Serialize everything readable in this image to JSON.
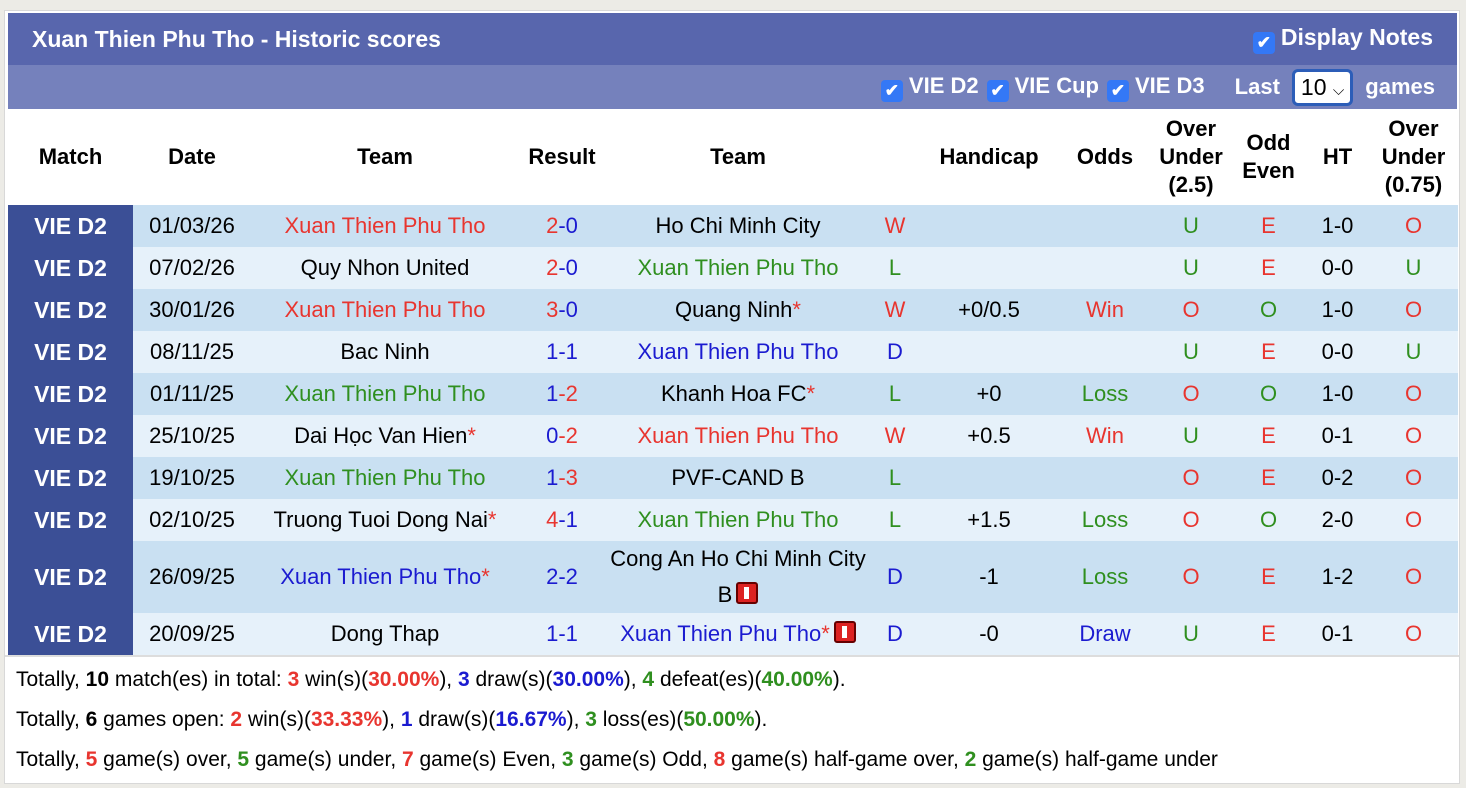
{
  "title": "Xuan Thien Phu Tho - Historic scores",
  "display_notes": "Display Notes",
  "filters": [
    {
      "label": "VIE D2",
      "checked": true
    },
    {
      "label": "VIE Cup",
      "checked": true
    },
    {
      "label": "VIE D3",
      "checked": true
    }
  ],
  "last_label": "Last",
  "last_value": "10",
  "games_label": "games",
  "colors": {
    "red": "#e8352f",
    "green": "#2f8f1f",
    "blue": "#1b1bd0",
    "black": "#000000",
    "header": "#5866ad",
    "match_cell": "#3b4f96"
  },
  "headers": [
    "Match",
    "Date",
    "Team",
    "Result",
    "Team",
    "",
    "Handicap",
    "Odds",
    "Over Under (2.5)",
    "Odd Even",
    "HT",
    "Over Under (0.75)"
  ],
  "rows": [
    {
      "match": "VIE D2",
      "date": "01/03/26",
      "home": {
        "name": "Xuan Thien Phu Tho",
        "c": "red"
      },
      "hs": [
        "2",
        "red"
      ],
      "as": [
        "0",
        "blue"
      ],
      "away": {
        "name": "Ho Chi Minh City",
        "c": "black"
      },
      "wl": [
        "W",
        "red"
      ],
      "hc": "",
      "odds": [
        "",
        ""
      ],
      "ou": [
        "U",
        "green"
      ],
      "oe": [
        "E",
        "red"
      ],
      "ht": "1-0",
      "ou2": [
        "O",
        "red"
      ]
    },
    {
      "match": "VIE D2",
      "date": "07/02/26",
      "home": {
        "name": "Quy Nhon United",
        "c": "black"
      },
      "hs": [
        "2",
        "red"
      ],
      "as": [
        "0",
        "blue"
      ],
      "away": {
        "name": "Xuan Thien Phu Tho",
        "c": "green"
      },
      "wl": [
        "L",
        "green"
      ],
      "hc": "",
      "odds": [
        "",
        ""
      ],
      "ou": [
        "U",
        "green"
      ],
      "oe": [
        "E",
        "red"
      ],
      "ht": "0-0",
      "ou2": [
        "U",
        "green"
      ]
    },
    {
      "match": "VIE D2",
      "date": "30/01/26",
      "home": {
        "name": "Xuan Thien Phu Tho",
        "c": "red"
      },
      "hs": [
        "3",
        "red"
      ],
      "as": [
        "0",
        "blue"
      ],
      "away": {
        "name": "Quang Ninh",
        "c": "black",
        "star": true
      },
      "wl": [
        "W",
        "red"
      ],
      "hc": "+0/0.5",
      "odds": [
        "Win",
        "red"
      ],
      "ou": [
        "O",
        "red"
      ],
      "oe": [
        "O",
        "green"
      ],
      "ht": "1-0",
      "ou2": [
        "O",
        "red"
      ]
    },
    {
      "match": "VIE D2",
      "date": "08/11/25",
      "home": {
        "name": "Bac Ninh",
        "c": "black"
      },
      "hs": [
        "1",
        "blue"
      ],
      "as": [
        "1",
        "blue"
      ],
      "away": {
        "name": "Xuan Thien Phu Tho",
        "c": "blue"
      },
      "wl": [
        "D",
        "blue"
      ],
      "hc": "",
      "odds": [
        "",
        ""
      ],
      "ou": [
        "U",
        "green"
      ],
      "oe": [
        "E",
        "red"
      ],
      "ht": "0-0",
      "ou2": [
        "U",
        "green"
      ]
    },
    {
      "match": "VIE D2",
      "date": "01/11/25",
      "home": {
        "name": "Xuan Thien Phu Tho",
        "c": "green"
      },
      "hs": [
        "1",
        "blue"
      ],
      "as": [
        "2",
        "red"
      ],
      "away": {
        "name": "Khanh Hoa FC",
        "c": "black",
        "star": true
      },
      "wl": [
        "L",
        "green"
      ],
      "hc": "+0",
      "odds": [
        "Loss",
        "green"
      ],
      "ou": [
        "O",
        "red"
      ],
      "oe": [
        "O",
        "green"
      ],
      "ht": "1-0",
      "ou2": [
        "O",
        "red"
      ]
    },
    {
      "match": "VIE D2",
      "date": "25/10/25",
      "home": {
        "name": "Dai Học Van Hien",
        "c": "black",
        "star": true
      },
      "hs": [
        "0",
        "blue"
      ],
      "as": [
        "2",
        "red"
      ],
      "away": {
        "name": "Xuan Thien Phu Tho",
        "c": "red"
      },
      "wl": [
        "W",
        "red"
      ],
      "hc": "+0.5",
      "odds": [
        "Win",
        "red"
      ],
      "ou": [
        "U",
        "green"
      ],
      "oe": [
        "E",
        "red"
      ],
      "ht": "0-1",
      "ou2": [
        "O",
        "red"
      ]
    },
    {
      "match": "VIE D2",
      "date": "19/10/25",
      "home": {
        "name": "Xuan Thien Phu Tho",
        "c": "green"
      },
      "hs": [
        "1",
        "blue"
      ],
      "as": [
        "3",
        "red"
      ],
      "away": {
        "name": "PVF-CAND B",
        "c": "black"
      },
      "wl": [
        "L",
        "green"
      ],
      "hc": "",
      "odds": [
        "",
        ""
      ],
      "ou": [
        "O",
        "red"
      ],
      "oe": [
        "E",
        "red"
      ],
      "ht": "0-2",
      "ou2": [
        "O",
        "red"
      ]
    },
    {
      "match": "VIE D2",
      "date": "02/10/25",
      "home": {
        "name": "Truong Tuoi Dong Nai",
        "c": "black",
        "star": true
      },
      "hs": [
        "4",
        "red"
      ],
      "as": [
        "1",
        "blue"
      ],
      "away": {
        "name": "Xuan Thien Phu Tho",
        "c": "green"
      },
      "wl": [
        "L",
        "green"
      ],
      "hc": "+1.5",
      "odds": [
        "Loss",
        "green"
      ],
      "ou": [
        "O",
        "red"
      ],
      "oe": [
        "O",
        "green"
      ],
      "ht": "2-0",
      "ou2": [
        "O",
        "red"
      ]
    },
    {
      "match": "VIE D2",
      "date": "26/09/25",
      "home": {
        "name": "Xuan Thien Phu Tho",
        "c": "blue",
        "star": true
      },
      "hs": [
        "2",
        "blue"
      ],
      "as": [
        "2",
        "blue"
      ],
      "away": {
        "name": "Cong An Ho Chi Minh City B",
        "c": "black",
        "card": true
      },
      "wl": [
        "D",
        "blue"
      ],
      "hc": "-1",
      "odds": [
        "Loss",
        "green"
      ],
      "ou": [
        "O",
        "red"
      ],
      "oe": [
        "E",
        "red"
      ],
      "ht": "1-2",
      "ou2": [
        "O",
        "red"
      ]
    },
    {
      "match": "VIE D2",
      "date": "20/09/25",
      "home": {
        "name": "Dong Thap",
        "c": "black"
      },
      "hs": [
        "1",
        "blue"
      ],
      "as": [
        "1",
        "blue"
      ],
      "away": {
        "name": "Xuan Thien Phu Tho",
        "c": "blue",
        "star": true,
        "card": true
      },
      "wl": [
        "D",
        "blue"
      ],
      "hc": "-0",
      "odds": [
        "Draw",
        "blue"
      ],
      "ou": [
        "U",
        "green"
      ],
      "oe": [
        "E",
        "red"
      ],
      "ht": "0-1",
      "ou2": [
        "O",
        "red"
      ]
    }
  ],
  "summary": [
    [
      [
        "Totally, ",
        "black"
      ],
      [
        "10",
        "bold"
      ],
      [
        " match(es) in total: ",
        "black"
      ],
      [
        "3",
        "red"
      ],
      [
        " win(s)(",
        "black"
      ],
      [
        "30.00%",
        "red"
      ],
      [
        "), ",
        "black"
      ],
      [
        "3",
        "blue"
      ],
      [
        " draw(s)(",
        "black"
      ],
      [
        "30.00%",
        "blue"
      ],
      [
        "), ",
        "black"
      ],
      [
        "4",
        "green"
      ],
      [
        " defeat(es)(",
        "black"
      ],
      [
        "40.00%",
        "green"
      ],
      [
        ").",
        "black"
      ]
    ],
    [
      [
        "Totally, ",
        "black"
      ],
      [
        "6",
        "bold"
      ],
      [
        " games open: ",
        "black"
      ],
      [
        "2",
        "red"
      ],
      [
        " win(s)(",
        "black"
      ],
      [
        "33.33%",
        "red"
      ],
      [
        "), ",
        "black"
      ],
      [
        "1",
        "blue"
      ],
      [
        " draw(s)(",
        "black"
      ],
      [
        "16.67%",
        "blue"
      ],
      [
        "), ",
        "black"
      ],
      [
        "3",
        "green"
      ],
      [
        " loss(es)(",
        "black"
      ],
      [
        "50.00%",
        "green"
      ],
      [
        ").",
        "black"
      ]
    ],
    [
      [
        "Totally, ",
        "black"
      ],
      [
        "5",
        "red"
      ],
      [
        " game(s) over, ",
        "black"
      ],
      [
        "5",
        "green"
      ],
      [
        " game(s) under, ",
        "black"
      ],
      [
        "7",
        "red"
      ],
      [
        " game(s) Even, ",
        "black"
      ],
      [
        "3",
        "green"
      ],
      [
        " game(s) Odd, ",
        "black"
      ],
      [
        "8",
        "red"
      ],
      [
        " game(s) half-game over, ",
        "black"
      ],
      [
        "2",
        "green"
      ],
      [
        " game(s) half-game under",
        "black"
      ]
    ]
  ]
}
